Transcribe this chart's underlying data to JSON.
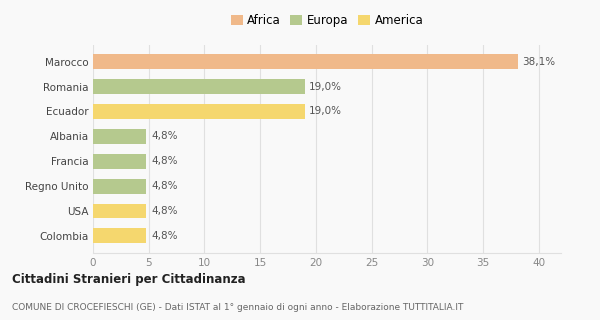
{
  "categories": [
    "Colombia",
    "USA",
    "Regno Unito",
    "Francia",
    "Albania",
    "Ecuador",
    "Romania",
    "Marocco"
  ],
  "values": [
    4.8,
    4.8,
    4.8,
    4.8,
    4.8,
    19.0,
    19.0,
    38.1
  ],
  "colors": [
    "#f5d76e",
    "#f5d76e",
    "#b5c98e",
    "#b5c98e",
    "#b5c98e",
    "#f5d76e",
    "#b5c98e",
    "#f0b98a"
  ],
  "labels": [
    "4,8%",
    "4,8%",
    "4,8%",
    "4,8%",
    "4,8%",
    "19,0%",
    "19,0%",
    "38,1%"
  ],
  "legend": [
    {
      "label": "Africa",
      "color": "#f0b98a"
    },
    {
      "label": "Europa",
      "color": "#b5c98e"
    },
    {
      "label": "America",
      "color": "#f5d76e"
    }
  ],
  "xlim": [
    0,
    42
  ],
  "xticks": [
    0,
    5,
    10,
    15,
    20,
    25,
    30,
    35,
    40
  ],
  "title": "Cittadini Stranieri per Cittadinanza",
  "subtitle": "COMUNE DI CROCEFIESCHI (GE) - Dati ISTAT al 1° gennaio di ogni anno - Elaborazione TUTTITALIA.IT",
  "background_color": "#f9f9f9",
  "grid_color": "#e0e0e0"
}
